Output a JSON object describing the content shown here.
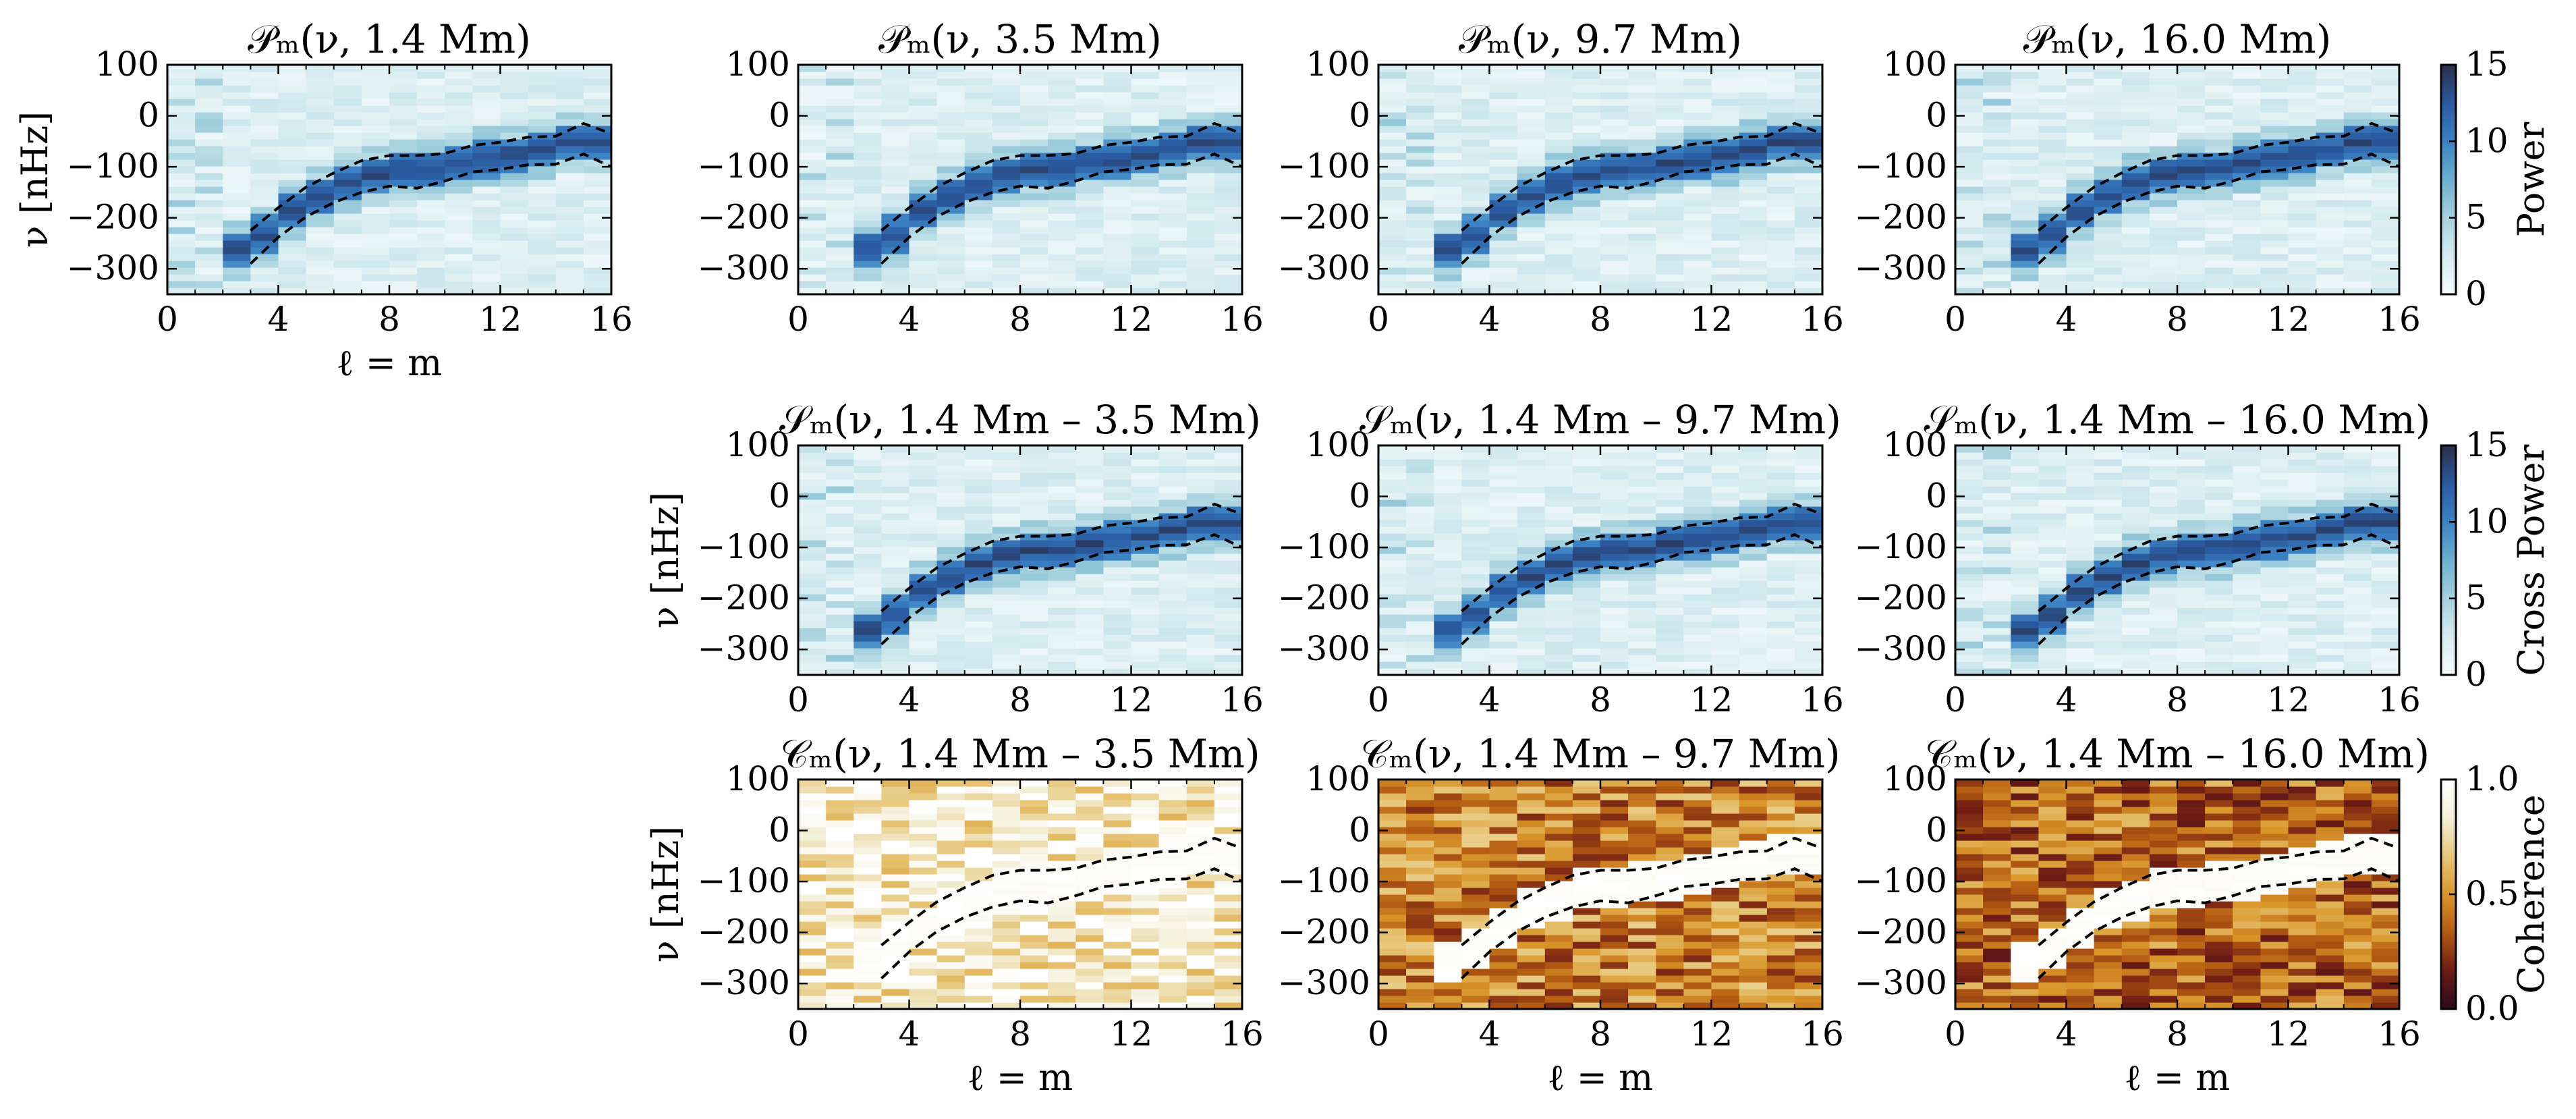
{
  "figure": {
    "panels": [
      {
        "id": "p1",
        "row": 0,
        "col": 0,
        "kind": "power",
        "title": "𝒫ₘ(ν, 1.4 Mm)",
        "ylabel": "ν [nHz]",
        "xlabel": "ℓ = m"
      },
      {
        "id": "p2",
        "row": 0,
        "col": 1,
        "kind": "power",
        "title": "𝒫ₘ(ν, 3.5 Mm)",
        "ylabel": "",
        "xlabel": ""
      },
      {
        "id": "p3",
        "row": 0,
        "col": 2,
        "kind": "power",
        "title": "𝒫ₘ(ν, 9.7 Mm)",
        "ylabel": "",
        "xlabel": ""
      },
      {
        "id": "p4",
        "row": 0,
        "col": 3,
        "kind": "power",
        "title": "𝒫ₘ(ν, 16.0 Mm)",
        "ylabel": "",
        "xlabel": ""
      },
      {
        "id": "s2",
        "row": 1,
        "col": 1,
        "kind": "cross",
        "title": "𝒮ₘ(ν, 1.4 Mm – 3.5 Mm)",
        "ylabel": "ν [nHz]",
        "xlabel": ""
      },
      {
        "id": "s3",
        "row": 1,
        "col": 2,
        "kind": "cross",
        "title": "𝒮ₘ(ν, 1.4 Mm – 9.7 Mm)",
        "ylabel": "",
        "xlabel": ""
      },
      {
        "id": "s4",
        "row": 1,
        "col": 3,
        "kind": "cross",
        "title": "𝒮ₘ(ν, 1.4 Mm – 16.0 Mm)",
        "ylabel": "",
        "xlabel": ""
      },
      {
        "id": "c2",
        "row": 2,
        "col": 1,
        "kind": "coherence",
        "title": "𝒞ₘ(ν, 1.4 Mm – 3.5 Mm)",
        "ylabel": "ν [nHz]",
        "xlabel": "ℓ = m",
        "level": 0.85
      },
      {
        "id": "c3",
        "row": 2,
        "col": 2,
        "kind": "coherence",
        "title": "𝒞ₘ(ν, 1.4 Mm – 9.7 Mm)",
        "ylabel": "",
        "xlabel": "ℓ = m",
        "level": 0.45
      },
      {
        "id": "c4",
        "row": 2,
        "col": 3,
        "kind": "coherence",
        "title": "𝒞ₘ(ν, 1.4 Mm – 16.0 Mm)",
        "ylabel": "",
        "xlabel": "ℓ = m",
        "level": 0.38
      }
    ],
    "colorbars": [
      {
        "id": "cb-power",
        "row": 0,
        "label": "Power",
        "ticks": [
          "0",
          "5",
          "10",
          "15"
        ],
        "range": [
          0,
          15
        ],
        "cmap": "blues"
      },
      {
        "id": "cb-cross",
        "row": 1,
        "label": "Cross Power",
        "ticks": [
          "0",
          "5",
          "10",
          "15"
        ],
        "range": [
          0,
          15
        ],
        "cmap": "blues"
      },
      {
        "id": "cb-coh",
        "row": 2,
        "label": "Coherence",
        "ticks": [
          "0.0",
          "0.5",
          "1.0"
        ],
        "range": [
          0,
          1
        ],
        "cmap": "brown"
      }
    ],
    "xticks": [
      "0",
      "4",
      "8",
      "12",
      "16"
    ],
    "yticks": [
      "100",
      "0",
      "−100",
      "−200",
      "−300"
    ],
    "colors": {
      "blues": [
        "#f7fbfc",
        "#d6ecf0",
        "#a7d2de",
        "#6bb0cf",
        "#3b82c4",
        "#2a5aa0",
        "#2b2f4a"
      ],
      "brown": [
        "#2a0a1e",
        "#6e1b14",
        "#b35a12",
        "#d9962a",
        "#e7c77a",
        "#f4f1dc",
        "#ffffff"
      ],
      "guide": "#000000"
    }
  },
  "chart_data": {
    "type": "heatmap",
    "x": {
      "label": "ℓ = m",
      "range": [
        0,
        16
      ],
      "ticks": [
        0,
        4,
        8,
        12,
        16
      ]
    },
    "y": {
      "label": "ν [nHz]",
      "range": [
        -350,
        100
      ],
      "ticks": [
        100,
        0,
        -100,
        -200,
        -300
      ]
    },
    "ridge_center_nHz": [
      [
        3,
        -260
      ],
      [
        4,
        -205
      ],
      [
        5,
        -170
      ],
      [
        6,
        -145
      ],
      [
        7,
        -120
      ],
      [
        8,
        -108
      ],
      [
        9,
        -105
      ],
      [
        10,
        -98
      ],
      [
        11,
        -88
      ],
      [
        12,
        -80
      ],
      [
        13,
        -72
      ],
      [
        14,
        -58
      ],
      [
        15,
        -40
      ],
      [
        16,
        -60
      ]
    ],
    "guide_upper_nHz": [
      [
        3,
        -225
      ],
      [
        4,
        -180
      ],
      [
        5,
        -140
      ],
      [
        6,
        -112
      ],
      [
        7,
        -88
      ],
      [
        8,
        -78
      ],
      [
        9,
        -78
      ],
      [
        10,
        -74
      ],
      [
        11,
        -58
      ],
      [
        12,
        -52
      ],
      [
        13,
        -42
      ],
      [
        14,
        -40
      ],
      [
        15,
        -15
      ],
      [
        16,
        -35
      ]
    ],
    "guide_lower_nHz": [
      [
        3,
        -290
      ],
      [
        4,
        -238
      ],
      [
        5,
        -198
      ],
      [
        6,
        -170
      ],
      [
        7,
        -150
      ],
      [
        8,
        -138
      ],
      [
        9,
        -142
      ],
      [
        10,
        -128
      ],
      [
        11,
        -110
      ],
      [
        12,
        -105
      ],
      [
        13,
        -96
      ],
      [
        14,
        -95
      ],
      [
        15,
        -75
      ],
      [
        16,
        -100
      ]
    ],
    "power_colorbar": {
      "label": "Power",
      "range": [
        0,
        15
      ]
    },
    "cross_power_colorbar": {
      "label": "Cross Power",
      "range": [
        0,
        15
      ]
    },
    "coherence_colorbar": {
      "label": "Coherence",
      "range": [
        0,
        1
      ]
    }
  }
}
